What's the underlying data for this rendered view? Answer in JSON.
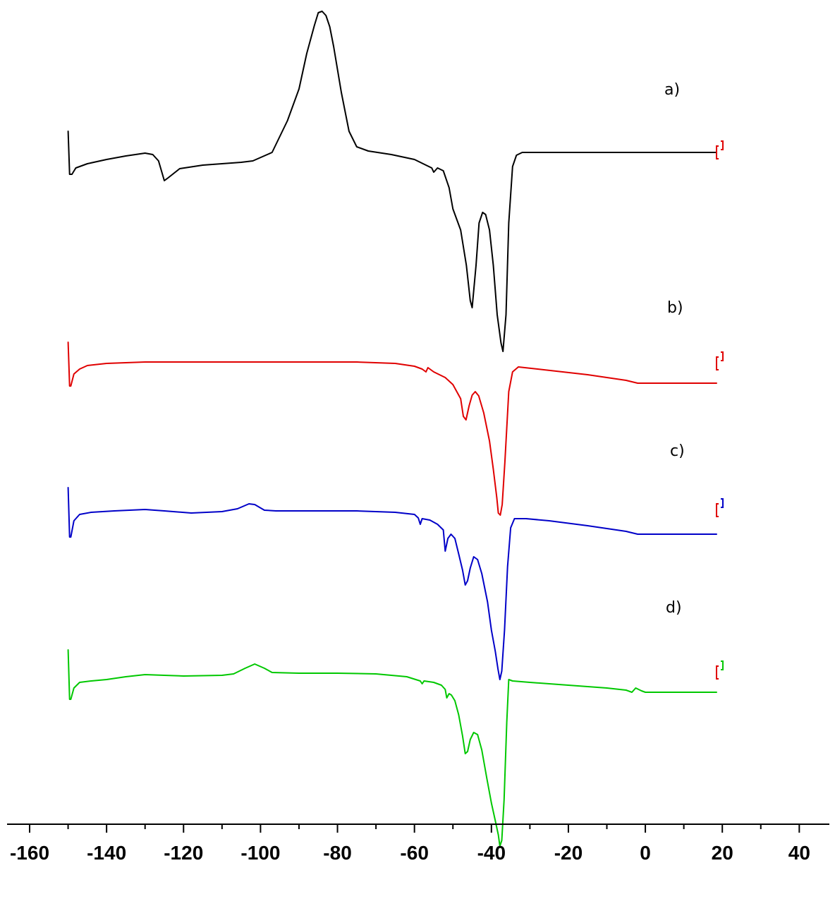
{
  "chart_data": {
    "type": "line",
    "title": "",
    "xlabel": "",
    "ylabel": "",
    "xlim": [
      -170,
      45
    ],
    "x_ticks": [
      -160,
      -140,
      -120,
      -100,
      -80,
      -60,
      -40,
      -20,
      0,
      20,
      40
    ],
    "x_tick_labels": [
      "-160",
      "-140",
      "-120",
      "-100",
      "-80",
      "-60",
      "-40",
      "-20",
      "0",
      "20",
      "40"
    ],
    "y_axis": "none",
    "grid": false,
    "legend": "none",
    "series": [
      {
        "label": "a)",
        "color": "#000000",
        "baseline_offset": 0,
        "points": [
          [
            -150,
            30
          ],
          [
            -149.6,
            -31
          ],
          [
            -149,
            -31
          ],
          [
            -148,
            -22
          ],
          [
            -145,
            -16
          ],
          [
            -140,
            -10
          ],
          [
            -135,
            -5
          ],
          [
            -130,
            -1
          ],
          [
            -128,
            -3
          ],
          [
            -126.5,
            -12
          ],
          [
            -125,
            -40
          ],
          [
            -124,
            -36
          ],
          [
            -121,
            -23
          ],
          [
            -115,
            -18
          ],
          [
            -105,
            -14
          ],
          [
            -102,
            -12
          ],
          [
            -97,
            0
          ],
          [
            -93,
            45
          ],
          [
            -90,
            90
          ],
          [
            -88,
            140
          ],
          [
            -86,
            180
          ],
          [
            -85,
            198
          ],
          [
            -84,
            200
          ],
          [
            -83,
            194
          ],
          [
            -82,
            178
          ],
          [
            -81,
            150
          ],
          [
            -79,
            85
          ],
          [
            -77,
            30
          ],
          [
            -75,
            8
          ],
          [
            -72,
            2
          ],
          [
            -66,
            -3
          ],
          [
            -60,
            -10
          ],
          [
            -57,
            -18
          ],
          [
            -55.5,
            -22
          ],
          [
            -55,
            -28
          ],
          [
            -54,
            -22
          ],
          [
            -52.5,
            -26
          ],
          [
            -51,
            -50
          ],
          [
            -50,
            -80
          ],
          [
            -48,
            -110
          ],
          [
            -46.5,
            -160
          ],
          [
            -45.5,
            -210
          ],
          [
            -45,
            -220
          ],
          [
            -44,
            -160
          ],
          [
            -43.2,
            -100
          ],
          [
            -42.3,
            -85
          ],
          [
            -41.5,
            -88
          ],
          [
            -40.5,
            -110
          ],
          [
            -39.5,
            -160
          ],
          [
            -38.5,
            -230
          ],
          [
            -37.5,
            -270
          ],
          [
            -37,
            -282
          ],
          [
            -36.2,
            -230
          ],
          [
            -35.5,
            -100
          ],
          [
            -34.5,
            -20
          ],
          [
            -33.5,
            -4
          ],
          [
            -32,
            0
          ],
          [
            -20,
            0
          ],
          [
            0,
            0
          ],
          [
            18.5,
            0
          ]
        ]
      },
      {
        "label": "b)",
        "color": "#e00000",
        "baseline_offset": 0,
        "points": [
          [
            -150,
            30
          ],
          [
            -149.6,
            -32
          ],
          [
            -149.3,
            -32
          ],
          [
            -148.5,
            -15
          ],
          [
            -147,
            -8
          ],
          [
            -145,
            -3
          ],
          [
            -140,
            0
          ],
          [
            -130,
            2
          ],
          [
            -115,
            2
          ],
          [
            -100,
            2
          ],
          [
            -85,
            2
          ],
          [
            -75,
            2
          ],
          [
            -65,
            0
          ],
          [
            -60,
            -4
          ],
          [
            -58,
            -8
          ],
          [
            -57,
            -12
          ],
          [
            -56.5,
            -6
          ],
          [
            -55,
            -12
          ],
          [
            -52,
            -20
          ],
          [
            -50,
            -30
          ],
          [
            -48,
            -50
          ],
          [
            -47.3,
            -75
          ],
          [
            -46.6,
            -80
          ],
          [
            -45.8,
            -60
          ],
          [
            -45,
            -45
          ],
          [
            -44.2,
            -40
          ],
          [
            -43.3,
            -46
          ],
          [
            -42,
            -70
          ],
          [
            -40.5,
            -110
          ],
          [
            -39.5,
            -150
          ],
          [
            -38.6,
            -190
          ],
          [
            -38.2,
            -212
          ],
          [
            -37.7,
            -215
          ],
          [
            -37.2,
            -200
          ],
          [
            -36.5,
            -140
          ],
          [
            -35.5,
            -40
          ],
          [
            -34.5,
            -12
          ],
          [
            -33,
            -5
          ],
          [
            -28,
            -8
          ],
          [
            -15,
            -16
          ],
          [
            -5,
            -24
          ],
          [
            -2,
            -28
          ],
          [
            0,
            -28
          ],
          [
            8,
            -28
          ],
          [
            18.5,
            -28
          ]
        ]
      },
      {
        "label": "c)",
        "color": "#0000c8",
        "baseline_offset": 0,
        "points": [
          [
            -150,
            32
          ],
          [
            -149.6,
            -38
          ],
          [
            -149.3,
            -38
          ],
          [
            -148.5,
            -15
          ],
          [
            -147,
            -6
          ],
          [
            -144,
            -3
          ],
          [
            -138,
            -1
          ],
          [
            -130,
            1
          ],
          [
            -125,
            -1
          ],
          [
            -118,
            -4
          ],
          [
            -110,
            -2
          ],
          [
            -106,
            2
          ],
          [
            -103,
            9
          ],
          [
            -101.5,
            8
          ],
          [
            -99,
            0
          ],
          [
            -96,
            -1
          ],
          [
            -85,
            -1
          ],
          [
            -75,
            -1
          ],
          [
            -65,
            -3
          ],
          [
            -60,
            -6
          ],
          [
            -59,
            -11
          ],
          [
            -58.5,
            -20
          ],
          [
            -58,
            -12
          ],
          [
            -56,
            -14
          ],
          [
            -54,
            -20
          ],
          [
            -52.5,
            -28
          ],
          [
            -52,
            -58
          ],
          [
            -51.3,
            -40
          ],
          [
            -50.5,
            -34
          ],
          [
            -49.5,
            -40
          ],
          [
            -48.5,
            -62
          ],
          [
            -47.5,
            -85
          ],
          [
            -46.8,
            -106
          ],
          [
            -46.2,
            -100
          ],
          [
            -45.5,
            -82
          ],
          [
            -44.6,
            -66
          ],
          [
            -43.6,
            -70
          ],
          [
            -42.5,
            -90
          ],
          [
            -41,
            -130
          ],
          [
            -40,
            -170
          ],
          [
            -39,
            -200
          ],
          [
            -38.3,
            -225
          ],
          [
            -37.8,
            -240
          ],
          [
            -37.3,
            -228
          ],
          [
            -36.6,
            -170
          ],
          [
            -35.8,
            -80
          ],
          [
            -35,
            -25
          ],
          [
            -34,
            -12
          ],
          [
            -31,
            -12
          ],
          [
            -25,
            -15
          ],
          [
            -15,
            -22
          ],
          [
            -5,
            -30
          ],
          [
            -2,
            -34
          ],
          [
            0,
            -34
          ],
          [
            10,
            -34
          ],
          [
            18.5,
            -34
          ]
        ]
      },
      {
        "label": "d)",
        "color": "#00c800",
        "baseline_offset": 0,
        "points": [
          [
            -150,
            32
          ],
          [
            -149.6,
            -38
          ],
          [
            -149.3,
            -38
          ],
          [
            -148.5,
            -22
          ],
          [
            -147,
            -14
          ],
          [
            -144,
            -12
          ],
          [
            -140,
            -10
          ],
          [
            -135,
            -6
          ],
          [
            -130,
            -3
          ],
          [
            -125,
            -4
          ],
          [
            -120,
            -5
          ],
          [
            -110,
            -4
          ],
          [
            -107,
            -2
          ],
          [
            -104,
            6
          ],
          [
            -101.5,
            12
          ],
          [
            -99,
            6
          ],
          [
            -97,
            0
          ],
          [
            -90,
            -1
          ],
          [
            -80,
            -1
          ],
          [
            -70,
            -2
          ],
          [
            -62,
            -6
          ],
          [
            -58.5,
            -12
          ],
          [
            -58,
            -16
          ],
          [
            -57.5,
            -12
          ],
          [
            -55,
            -14
          ],
          [
            -53,
            -18
          ],
          [
            -52,
            -24
          ],
          [
            -51.6,
            -36
          ],
          [
            -51,
            -30
          ],
          [
            -50.4,
            -32
          ],
          [
            -49.5,
            -40
          ],
          [
            -48.5,
            -60
          ],
          [
            -47.5,
            -90
          ],
          [
            -46.8,
            -115
          ],
          [
            -46.2,
            -112
          ],
          [
            -45.5,
            -95
          ],
          [
            -44.6,
            -85
          ],
          [
            -43.6,
            -88
          ],
          [
            -42.5,
            -110
          ],
          [
            -41.2,
            -150
          ],
          [
            -40,
            -185
          ],
          [
            -39,
            -210
          ],
          [
            -38.2,
            -230
          ],
          [
            -37.8,
            -246
          ],
          [
            -37.3,
            -238
          ],
          [
            -36.7,
            -180
          ],
          [
            -36,
            -70
          ],
          [
            -35.5,
            -10
          ],
          [
            -34.5,
            -12
          ],
          [
            -30,
            -14
          ],
          [
            -20,
            -18
          ],
          [
            -10,
            -22
          ],
          [
            -5,
            -25
          ],
          [
            -3.5,
            -28
          ],
          [
            -2.5,
            -22
          ],
          [
            -1,
            -26
          ],
          [
            0,
            -28
          ],
          [
            10,
            -28
          ],
          [
            18.5,
            -28
          ]
        ]
      }
    ]
  }
}
